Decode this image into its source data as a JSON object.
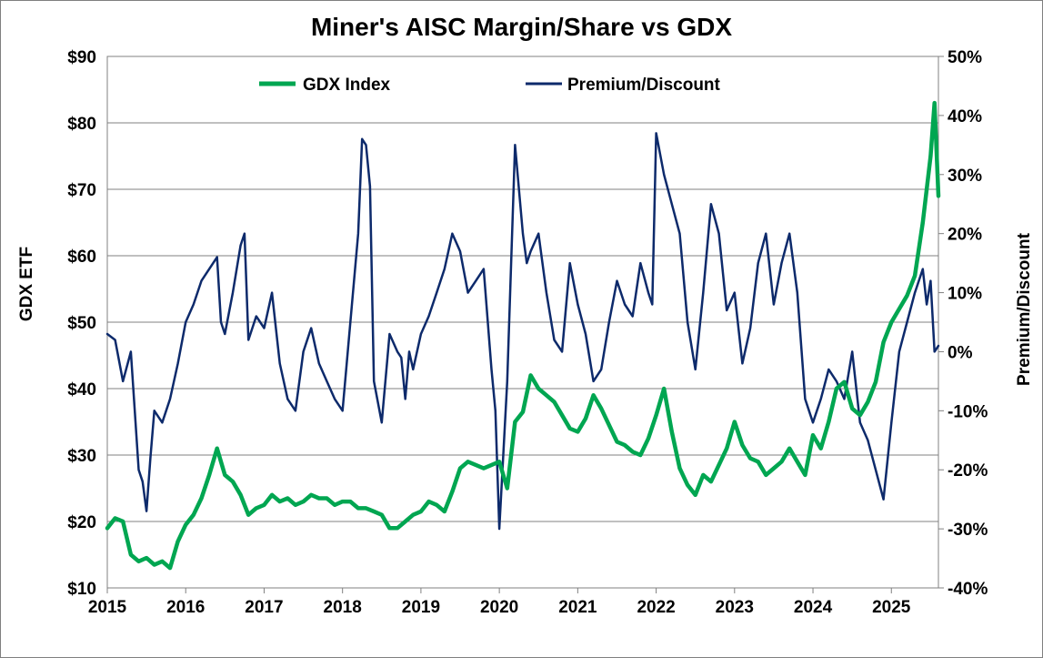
{
  "chart_data": {
    "type": "line",
    "title": "Miner's AISC Margin/Share vs GDX",
    "ylabel": "GDX ETF",
    "y2label": "Premium/Discount",
    "xlim": [
      2015,
      2025.6
    ],
    "ylim": [
      10,
      90
    ],
    "y2lim": [
      -40,
      50
    ],
    "x_ticks": [
      "2015",
      "2016",
      "2017",
      "2018",
      "2019",
      "2020",
      "2021",
      "2022",
      "2023",
      "2024",
      "2025"
    ],
    "y_ticks": [
      "$10",
      "$20",
      "$30",
      "$40",
      "$50",
      "$60",
      "$70",
      "$80",
      "$90"
    ],
    "y2_ticks": [
      "-40%",
      "-30%",
      "-20%",
      "-10%",
      "0%",
      "10%",
      "20%",
      "30%",
      "40%",
      "50%"
    ],
    "grid": "horizontal",
    "legend_position": "top",
    "series": [
      {
        "name": "GDX Index",
        "axis": "left",
        "color": "#00a651",
        "x": [
          2015.0,
          2015.1,
          2015.2,
          2015.3,
          2015.4,
          2015.5,
          2015.6,
          2015.7,
          2015.8,
          2015.9,
          2016.0,
          2016.1,
          2016.2,
          2016.3,
          2016.4,
          2016.5,
          2016.6,
          2016.7,
          2016.8,
          2016.9,
          2017.0,
          2017.1,
          2017.2,
          2017.3,
          2017.4,
          2017.5,
          2017.6,
          2017.7,
          2017.8,
          2017.9,
          2018.0,
          2018.1,
          2018.2,
          2018.3,
          2018.4,
          2018.5,
          2018.6,
          2018.7,
          2018.8,
          2018.9,
          2019.0,
          2019.1,
          2019.2,
          2019.3,
          2019.4,
          2019.5,
          2019.6,
          2019.7,
          2019.8,
          2019.9,
          2020.0,
          2020.1,
          2020.2,
          2020.3,
          2020.4,
          2020.5,
          2020.6,
          2020.7,
          2020.8,
          2020.9,
          2021.0,
          2021.1,
          2021.2,
          2021.3,
          2021.4,
          2021.5,
          2021.6,
          2021.7,
          2021.8,
          2021.9,
          2022.0,
          2022.1,
          2022.2,
          2022.3,
          2022.4,
          2022.5,
          2022.6,
          2022.7,
          2022.8,
          2022.9,
          2023.0,
          2023.1,
          2023.2,
          2023.3,
          2023.4,
          2023.5,
          2023.6,
          2023.7,
          2023.8,
          2023.9,
          2024.0,
          2024.1,
          2024.2,
          2024.3,
          2024.4,
          2024.5,
          2024.6,
          2024.7,
          2024.8,
          2024.9,
          2025.0,
          2025.1,
          2025.2,
          2025.3,
          2025.4,
          2025.5,
          2025.55,
          2025.6
        ],
        "values": [
          19,
          20.5,
          20,
          15,
          14,
          14.5,
          13.5,
          14,
          13,
          17,
          19.5,
          21,
          23.5,
          27,
          31,
          27,
          26,
          24,
          21,
          22,
          22.5,
          24,
          23,
          23.5,
          22.5,
          23,
          24,
          23.5,
          23.5,
          22.5,
          23,
          23,
          22,
          22,
          21.5,
          21,
          19,
          19,
          20,
          21,
          21.5,
          23,
          22.5,
          21.5,
          24.5,
          28,
          29,
          28.5,
          28,
          28.5,
          29,
          25,
          35,
          36.5,
          42,
          40,
          39,
          38,
          36,
          34,
          33.5,
          35.5,
          39,
          37,
          34.5,
          32,
          31.5,
          30.5,
          30,
          32.5,
          36,
          40,
          33.5,
          28,
          25.5,
          24,
          27,
          26,
          28.5,
          31,
          35,
          31.5,
          29.5,
          29,
          27,
          28,
          29,
          31,
          29,
          27,
          33,
          31,
          35,
          40,
          41,
          37,
          36,
          38,
          41,
          47,
          50,
          52,
          54,
          57,
          65,
          75,
          83,
          69
        ]
      },
      {
        "name": "Premium/Discount",
        "axis": "right",
        "color": "#0d2a6b",
        "x": [
          2015.0,
          2015.1,
          2015.2,
          2015.3,
          2015.4,
          2015.45,
          2015.5,
          2015.55,
          2015.6,
          2015.7,
          2015.8,
          2015.9,
          2016.0,
          2016.1,
          2016.2,
          2016.3,
          2016.4,
          2016.45,
          2016.5,
          2016.6,
          2016.7,
          2016.75,
          2016.8,
          2016.9,
          2017.0,
          2017.1,
          2017.2,
          2017.3,
          2017.4,
          2017.5,
          2017.6,
          2017.7,
          2017.8,
          2017.9,
          2018.0,
          2018.1,
          2018.2,
          2018.25,
          2018.3,
          2018.35,
          2018.4,
          2018.5,
          2018.6,
          2018.7,
          2018.75,
          2018.8,
          2018.85,
          2018.9,
          2019.0,
          2019.1,
          2019.2,
          2019.3,
          2019.4,
          2019.5,
          2019.6,
          2019.7,
          2019.8,
          2019.9,
          2019.95,
          2020.0,
          2020.1,
          2020.2,
          2020.3,
          2020.35,
          2020.4,
          2020.5,
          2020.6,
          2020.7,
          2020.8,
          2020.9,
          2021.0,
          2021.1,
          2021.2,
          2021.3,
          2021.4,
          2021.5,
          2021.6,
          2021.7,
          2021.8,
          2021.9,
          2021.95,
          2022.0,
          2022.1,
          2022.2,
          2022.3,
          2022.4,
          2022.5,
          2022.6,
          2022.7,
          2022.8,
          2022.9,
          2023.0,
          2023.1,
          2023.2,
          2023.3,
          2023.4,
          2023.5,
          2023.6,
          2023.7,
          2023.8,
          2023.9,
          2024.0,
          2024.1,
          2024.2,
          2024.3,
          2024.4,
          2024.5,
          2024.6,
          2024.7,
          2024.8,
          2024.9,
          2025.0,
          2025.1,
          2025.2,
          2025.3,
          2025.4,
          2025.45,
          2025.5,
          2025.55,
          2025.6
        ],
        "values": [
          3,
          2,
          -5,
          0,
          -20,
          -22,
          -27,
          -18,
          -10,
          -12,
          -8,
          -2,
          5,
          8,
          12,
          14,
          16,
          5,
          3,
          10,
          18,
          20,
          2,
          6,
          4,
          10,
          -2,
          -8,
          -10,
          0,
          4,
          -2,
          -5,
          -8,
          -10,
          5,
          20,
          36,
          35,
          28,
          -5,
          -12,
          3,
          0,
          -1,
          -8,
          0,
          -3,
          3,
          6,
          10,
          14,
          20,
          17,
          10,
          12,
          14,
          -3,
          -10,
          -30,
          -5,
          35,
          20,
          15,
          17,
          20,
          10,
          2,
          0,
          15,
          8,
          3,
          -5,
          -3,
          5,
          12,
          8,
          6,
          15,
          10,
          8,
          37,
          30,
          25,
          20,
          5,
          -3,
          10,
          25,
          20,
          7,
          10,
          -2,
          4,
          15,
          20,
          8,
          15,
          20,
          10,
          -8,
          -12,
          -8,
          -3,
          -5,
          -8,
          0,
          -12,
          -15,
          -20,
          -25,
          -12,
          0,
          5,
          10,
          14,
          8,
          12,
          0,
          1
        ]
      }
    ]
  }
}
